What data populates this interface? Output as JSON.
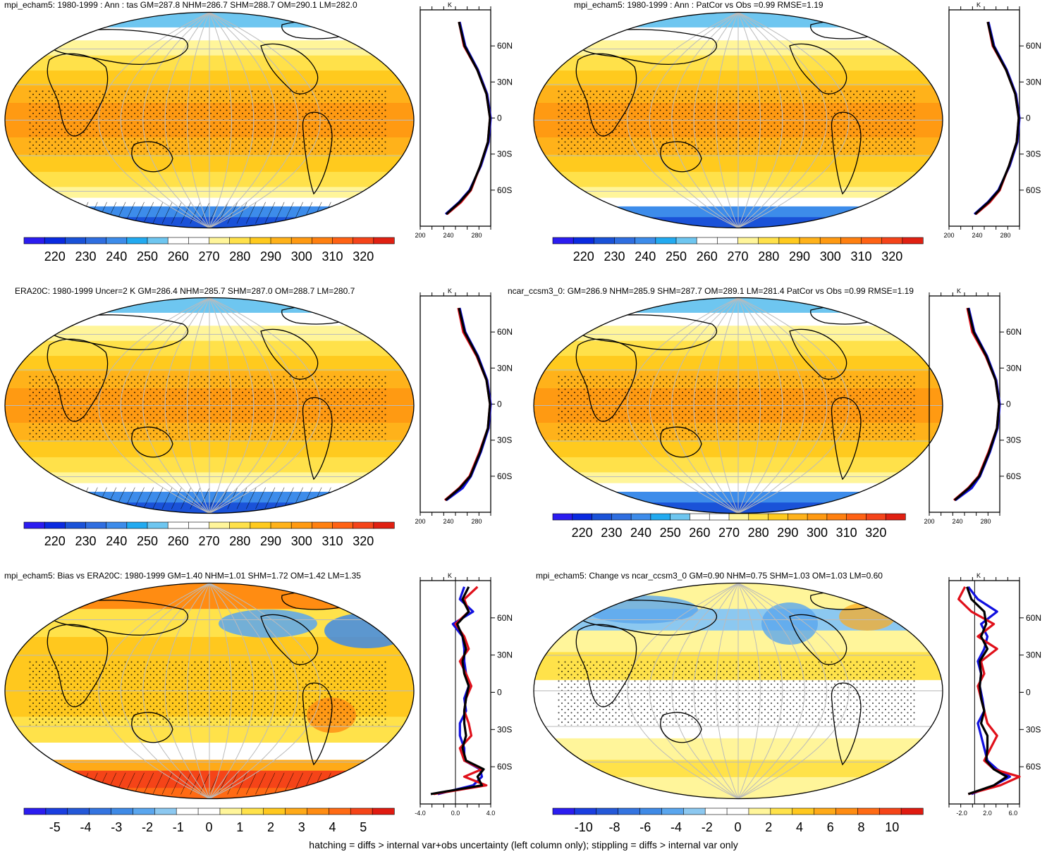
{
  "footer": "hatching = diffs > internal var+obs uncertainty (left column only); stippling = diffs > internal var only",
  "palettes": {
    "abs": [
      "#2b1cf0",
      "#0a2ae0",
      "#1a52d8",
      "#2f6ee0",
      "#3d8cea",
      "#22aaf0",
      "#6ec6f0",
      "#ffffff",
      "#ffffff",
      "#fff59a",
      "#ffe14a",
      "#ffca1e",
      "#ffb21a",
      "#ff9a12",
      "#ff8010",
      "#ff6214",
      "#f5441a",
      "#e02012"
    ],
    "bias": [
      "#2b1cf0",
      "#1a3ee0",
      "#2458d8",
      "#3474e0",
      "#3f8ae6",
      "#5aa6ee",
      "#8cc8f0",
      "#ffffff",
      "#ffffff",
      "#fff59a",
      "#ffe24a",
      "#ffc81e",
      "#ffaa18",
      "#ff8c12",
      "#ff6a14",
      "#f54418",
      "#e01a10"
    ],
    "change": [
      "#2b1cf0",
      "#1a3ee0",
      "#2458d8",
      "#3474e0",
      "#3f8ae6",
      "#5aa6ee",
      "#8cc8f0",
      "#ffffff",
      "#ffffff",
      "#fff59a",
      "#ffe24a",
      "#ffc81e",
      "#ffaa18",
      "#ff8c12",
      "#ff6a14",
      "#f54418",
      "#e01a10"
    ]
  },
  "line_colors": {
    "model": "#e0101a",
    "obs": "#1010e0",
    "mean": "#000000"
  },
  "panels": [
    {
      "title": "mpi_echam5: 1980-1999 : Ann : tas GM=287.8 NHM=286.7 SHM=288.7 OM=290.1 LM=282.0",
      "colorbar": {
        "palette": "abs",
        "labels": [
          "220",
          "230",
          "240",
          "250",
          "260",
          "270",
          "280",
          "290",
          "300",
          "310",
          "320"
        ]
      },
      "chart_data": {
        "type": "line",
        "units": "K",
        "lat_ticks": [
          "60N",
          "30N",
          "0",
          "30S",
          "60S"
        ],
        "lat": [
          80,
          60,
          40,
          20,
          0,
          -20,
          -40,
          -60,
          -70,
          -80
        ],
        "x_labels": [
          "200",
          "240",
          "280"
        ],
        "xlim": [
          200,
          300
        ],
        "series": [
          {
            "color": "model",
            "values": [
              255,
              262,
              281,
              294,
              299,
              296,
              285,
              272,
              258,
              238
            ]
          },
          {
            "color": "obs",
            "values": [
              256,
              264,
              282,
              295,
              300,
              297,
              286,
              270,
              255,
              236
            ]
          },
          {
            "color": "mean",
            "values": [
              255,
              263,
              281,
              294,
              299,
              296,
              285,
              271,
              256,
              237
            ]
          }
        ]
      }
    },
    {
      "title": "mpi_echam5: 1980-1999 : Ann : PatCor vs Obs =0.99 RMSE=1.19",
      "colorbar": {
        "palette": "abs",
        "labels": [
          "220",
          "230",
          "240",
          "250",
          "260",
          "270",
          "280",
          "290",
          "300",
          "310",
          "320"
        ]
      },
      "chart_data": {
        "type": "line",
        "units": "K",
        "lat_ticks": [
          "60N",
          "30N",
          "0",
          "30S",
          "60S"
        ],
        "lat": [
          80,
          60,
          40,
          20,
          0,
          -20,
          -40,
          -60,
          -70,
          -80
        ],
        "x_labels": [
          "200",
          "240",
          "280"
        ],
        "xlim": [
          200,
          300
        ],
        "series": [
          {
            "color": "model",
            "values": [
              255,
              262,
              281,
              294,
              299,
              296,
              285,
              272,
              258,
              238
            ]
          },
          {
            "color": "obs",
            "values": [
              256,
              264,
              282,
              295,
              300,
              297,
              286,
              270,
              255,
              236
            ]
          },
          {
            "color": "mean",
            "values": [
              255,
              263,
              281,
              294,
              299,
              296,
              285,
              271,
              256,
              237
            ]
          }
        ]
      }
    },
    {
      "title": "ERA20C: 1980-1999 Uncer=2 K GM=286.4 NHM=285.7 SHM=287.0 OM=288.7 LM=280.7",
      "colorbar": {
        "palette": "abs",
        "labels": [
          "220",
          "230",
          "240",
          "250",
          "260",
          "270",
          "280",
          "290",
          "300",
          "310",
          "320"
        ]
      },
      "chart_data": {
        "type": "line",
        "units": "K",
        "lat_ticks": [
          "60N",
          "30N",
          "0",
          "30S",
          "60S"
        ],
        "lat": [
          80,
          60,
          40,
          20,
          0,
          -20,
          -40,
          -60,
          -70,
          -80
        ],
        "x_labels": [
          "200",
          "240",
          "280"
        ],
        "xlim": [
          200,
          300
        ],
        "series": [
          {
            "color": "model",
            "values": [
              254,
              261,
              280,
              294,
              299,
              296,
              284,
              270,
              255,
              235
            ]
          },
          {
            "color": "obs",
            "values": [
              256,
              264,
              282,
              295,
              300,
              297,
              286,
              272,
              260,
              237
            ]
          },
          {
            "color": "mean",
            "values": [
              255,
              263,
              281,
              294,
              299,
              296,
              285,
              271,
              256,
              236
            ]
          }
        ]
      }
    },
    {
      "title": "ncar_ccsm3_0: GM=286.9 NHM=285.9 SHM=287.7 OM=289.1 LM=281.4 PatCor vs Obs =0.99 RMSE=1.19",
      "colorbar": {
        "palette": "abs",
        "labels": [
          "220",
          "230",
          "240",
          "250",
          "260",
          "270",
          "280",
          "290",
          "300",
          "310",
          "320"
        ]
      },
      "chart_data": {
        "type": "line",
        "units": "K",
        "lat_ticks": [
          "60N",
          "30N",
          "0",
          "30S",
          "60S"
        ],
        "lat": [
          80,
          60,
          40,
          20,
          0,
          -20,
          -40,
          -60,
          -70,
          -80
        ],
        "x_labels": [
          "200",
          "240",
          "280"
        ],
        "xlim": [
          200,
          300
        ],
        "series": [
          {
            "color": "model",
            "values": [
              254,
              261,
              280,
              294,
              299,
              296,
              284,
              270,
              255,
              235
            ]
          },
          {
            "color": "obs",
            "values": [
              256,
              264,
              282,
              295,
              300,
              297,
              286,
              272,
              260,
              237
            ]
          },
          {
            "color": "mean",
            "values": [
              255,
              263,
              281,
              294,
              299,
              296,
              285,
              271,
              256,
              236
            ]
          }
        ]
      }
    },
    {
      "title": "mpi_echam5: Bias vs ERA20C: 1980-1999 GM=1.40 NHM=1.01 SHM=1.72 OM=1.42 LM=1.35",
      "colorbar": {
        "palette": "bias",
        "labels": [
          "-5",
          "-4",
          "-3",
          "-2",
          "-1",
          "0",
          "1",
          "2",
          "3",
          "4",
          "5"
        ]
      },
      "chart_data": {
        "type": "line",
        "units": "K",
        "lat_ticks": [
          "60N",
          "30N",
          "0",
          "30S",
          "60S"
        ],
        "lat": [
          85,
          75,
          65,
          55,
          45,
          35,
          25,
          15,
          5,
          -5,
          -15,
          -25,
          -35,
          -45,
          -55,
          -62,
          -68,
          -75,
          -82
        ],
        "x_labels": [
          "-4.0",
          "0.0",
          "4.0"
        ],
        "xlim": [
          -4,
          4
        ],
        "series": [
          {
            "color": "model",
            "values": [
              2.5,
              1.0,
              1.5,
              0.0,
              1.0,
              1.5,
              0.5,
              1.2,
              1.8,
              1.2,
              1.0,
              1.5,
              1.8,
              0.5,
              1.0,
              3.0,
              1.0,
              3.5,
              -2.5
            ]
          },
          {
            "color": "obs",
            "values": [
              1.0,
              0.5,
              2.0,
              -0.3,
              0.8,
              1.0,
              1.0,
              1.2,
              1.5,
              1.0,
              1.2,
              0.5,
              0.5,
              1.0,
              1.0,
              2.8,
              3.0,
              2.0,
              -2.0
            ]
          },
          {
            "color": "mean",
            "values": [
              1.5,
              0.8,
              1.5,
              0.2,
              0.8,
              1.2,
              0.8,
              1.0,
              1.5,
              1.2,
              1.0,
              1.0,
              1.2,
              0.8,
              1.2,
              3.2,
              2.5,
              3.0,
              -2.8
            ]
          }
        ]
      }
    },
    {
      "title": "mpi_echam5: Change vs ncar_ccsm3_0 GM=0.90 NHM=0.75 SHM=1.03 OM=1.03 LM=0.60",
      "colorbar": {
        "palette": "change",
        "labels": [
          "-10",
          "-8",
          "-6",
          "-4",
          "-2",
          "0",
          "2",
          "4",
          "6",
          "8",
          "10"
        ]
      },
      "chart_data": {
        "type": "line",
        "units": "K",
        "lat_ticks": [
          "60N",
          "30N",
          "0",
          "30S",
          "60S"
        ],
        "lat": [
          85,
          75,
          65,
          55,
          45,
          35,
          25,
          15,
          5,
          -5,
          -15,
          -25,
          -35,
          -45,
          -55,
          -62,
          -68,
          -75,
          -82
        ],
        "x_labels": [
          "-2.0",
          "2.0",
          "6.0"
        ],
        "xlim": [
          -4,
          7
        ],
        "series": [
          {
            "color": "model",
            "values": [
              -1.5,
              -2.5,
              -0.5,
              3.0,
              0.5,
              3.5,
              1.0,
              1.5,
              0.5,
              1.0,
              1.5,
              2.0,
              3.5,
              2.5,
              1.5,
              3.0,
              7.0,
              4.0,
              -1.0
            ]
          },
          {
            "color": "obs",
            "values": [
              -1.0,
              0.5,
              3.5,
              1.0,
              2.0,
              1.5,
              0.5,
              1.0,
              0.8,
              1.2,
              1.5,
              0.5,
              1.0,
              1.5,
              2.0,
              3.5,
              5.5,
              3.0,
              -0.5
            ]
          },
          {
            "color": "mean",
            "values": [
              -1.2,
              -0.5,
              1.5,
              1.8,
              1.0,
              2.0,
              0.8,
              1.0,
              0.8,
              1.0,
              1.5,
              1.0,
              2.0,
              2.0,
              1.8,
              3.0,
              5.0,
              3.0,
              -1.0
            ]
          }
        ]
      }
    }
  ]
}
